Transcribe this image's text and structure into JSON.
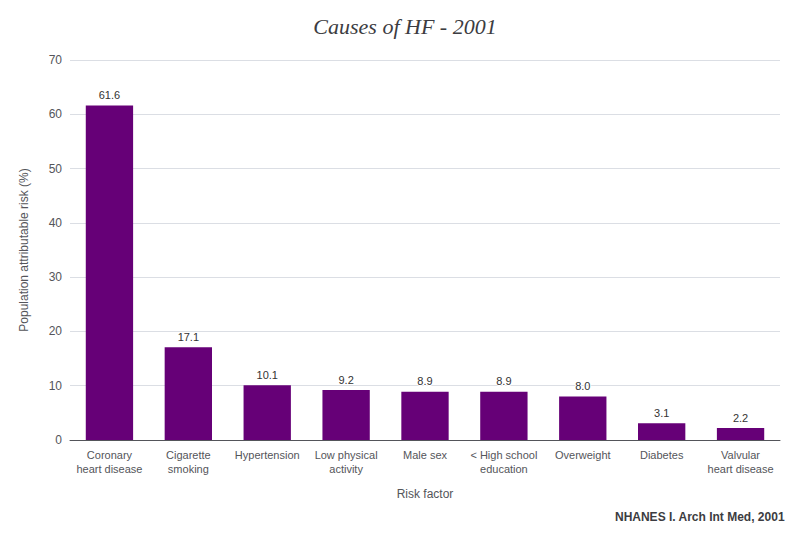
{
  "chart_data": {
    "type": "bar",
    "title": "Causes of HF - 2001",
    "subtitle": "NHANES I. Arch Int Med, 2001",
    "categories": [
      "Coronary\nheart disease",
      "Cigarette\nsmoking",
      "Hypertension",
      "Low physical\nactivity",
      "Male sex",
      "< High school\neducation",
      "Overweight",
      "Diabetes",
      "Valvular\nheart disease"
    ],
    "values": [
      61.6,
      17.1,
      10.1,
      9.2,
      8.9,
      8.9,
      8.0,
      3.1,
      2.2
    ],
    "value_labels": [
      "61.6",
      "17.1",
      "10.1",
      "9.2",
      "8.9",
      "8.9",
      "8.0",
      "3.1",
      "2.2"
    ],
    "color": "#660077",
    "xlabel": "Risk factor",
    "ylabel": "Population attributable risk (%)",
    "ylim": [
      0,
      70
    ],
    "yticks": [
      0,
      10,
      20,
      30,
      40,
      50,
      60,
      70
    ],
    "grid": true,
    "data_labels": true
  }
}
